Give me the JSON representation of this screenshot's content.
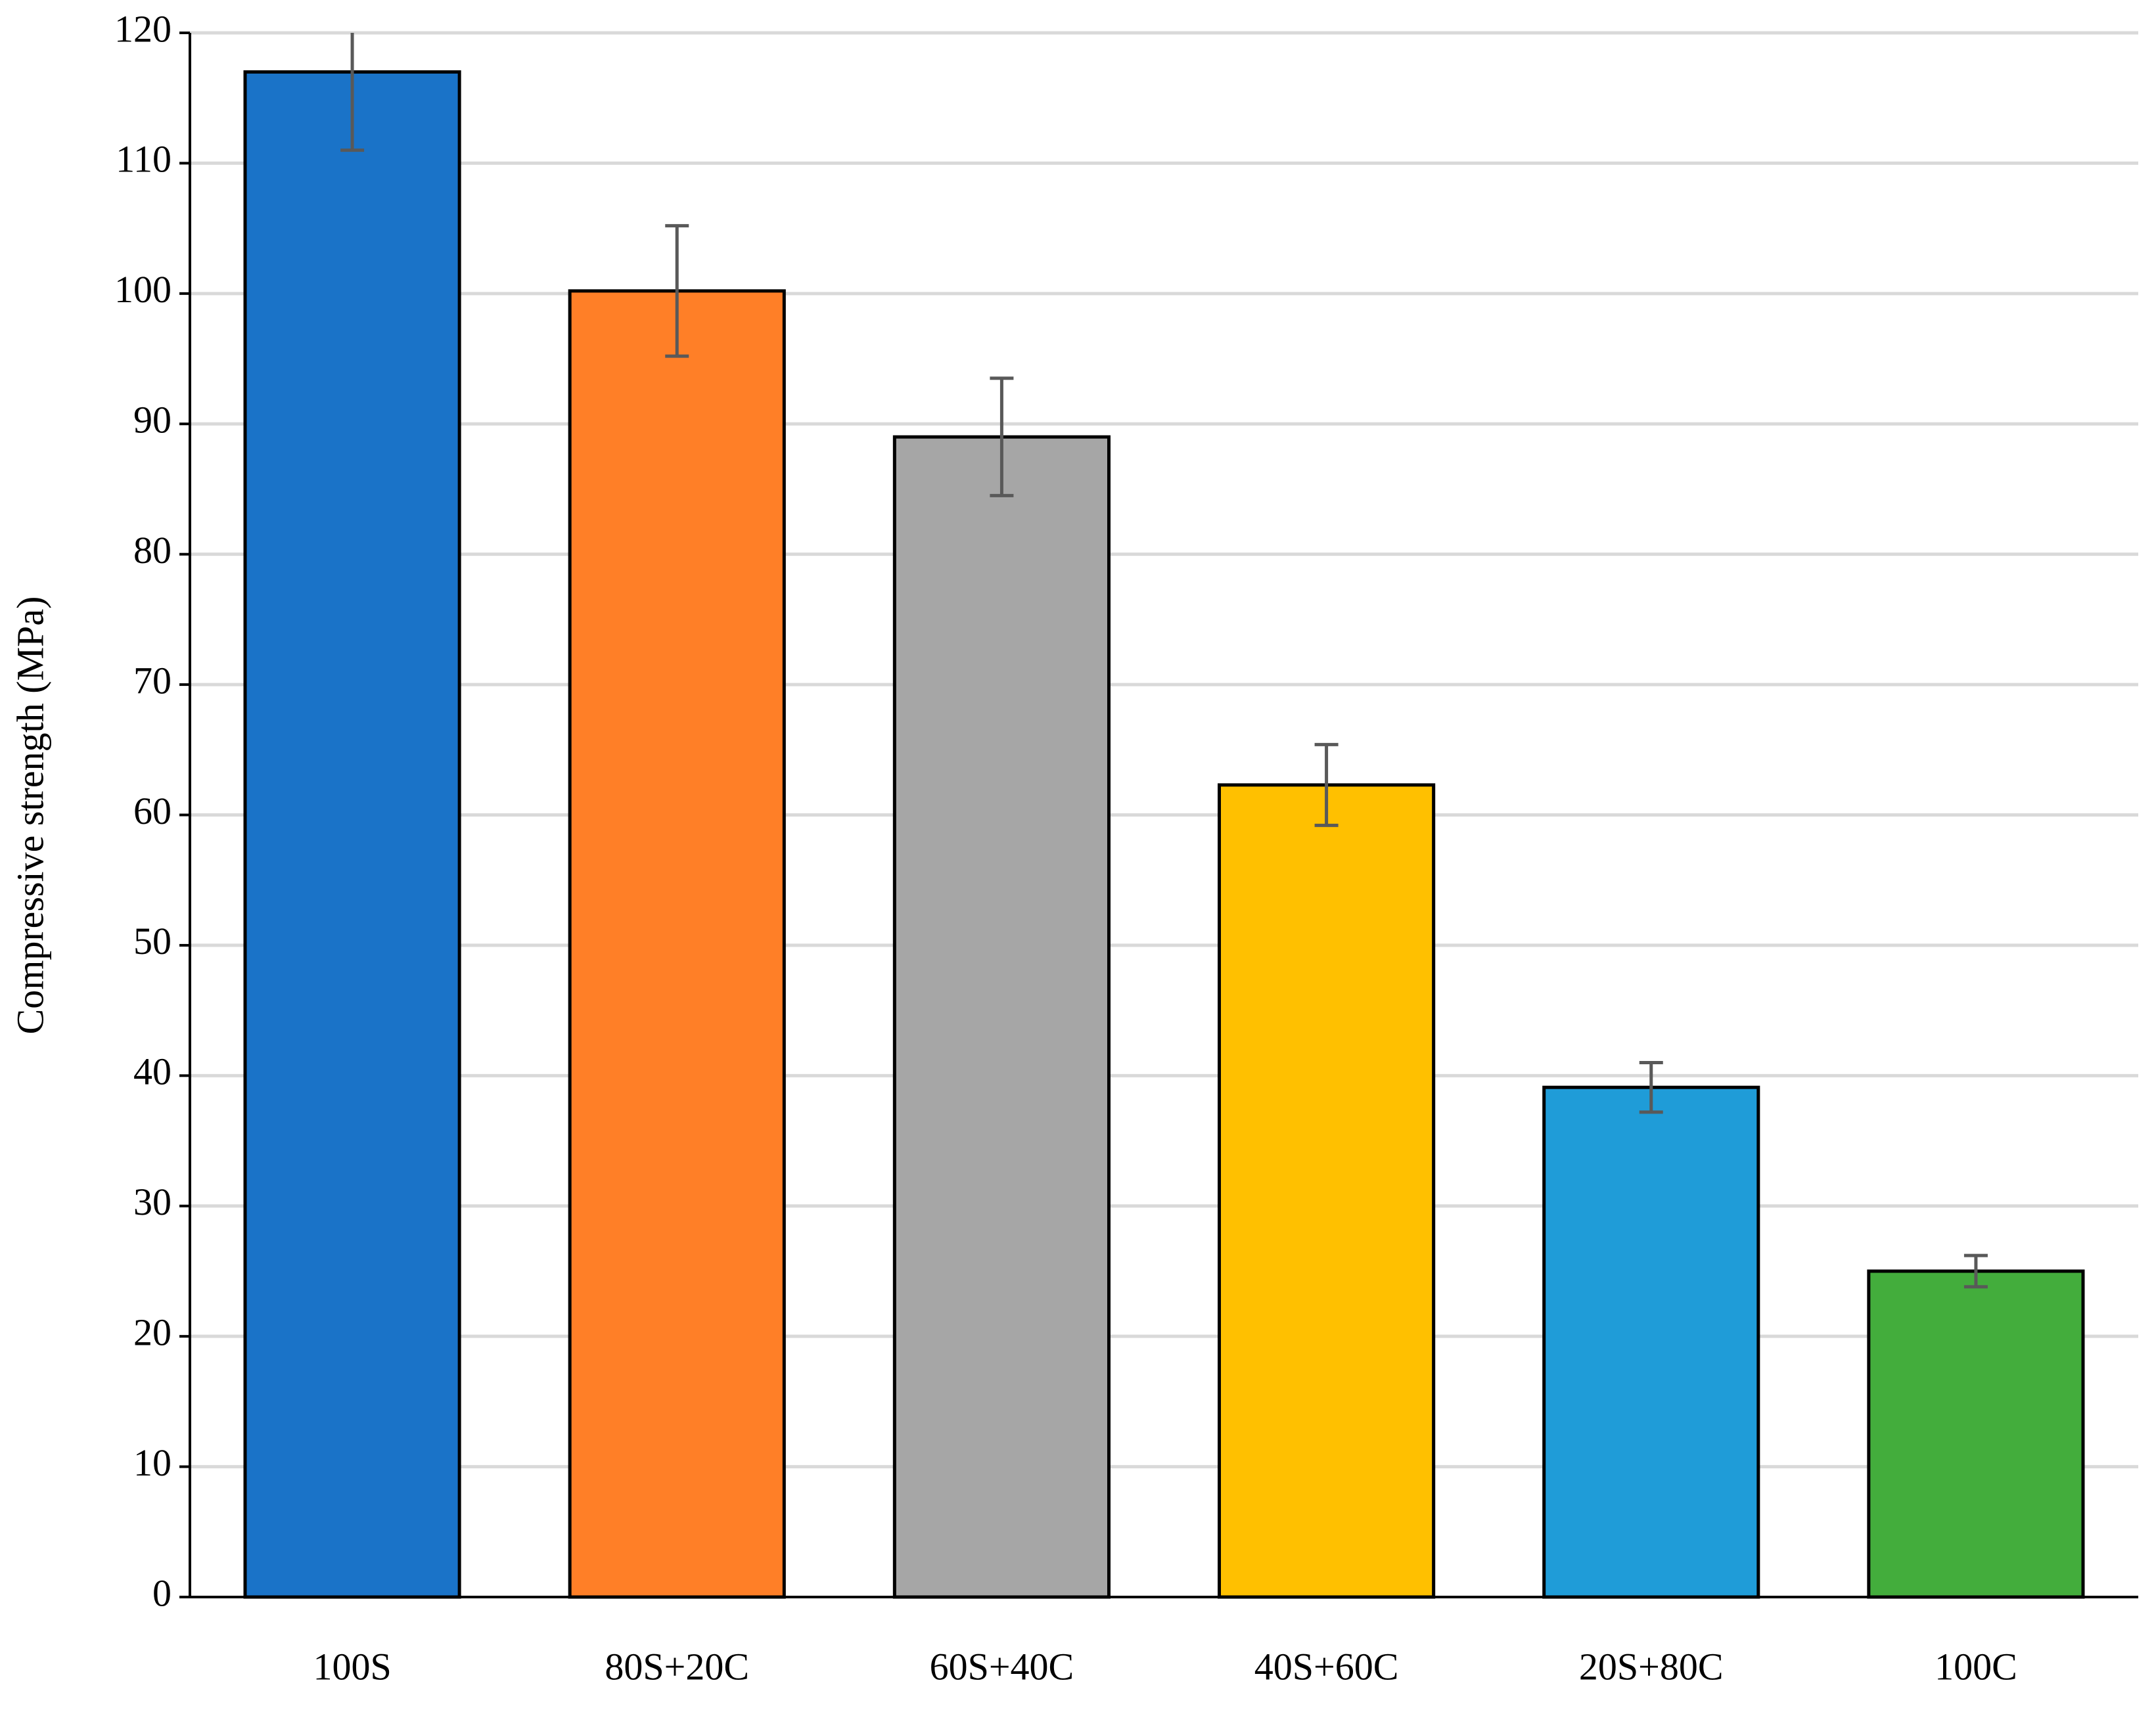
{
  "chart_data": {
    "type": "bar",
    "y_label": "Compressive strength (MPa)",
    "categories": [
      "100S",
      "80S+20C",
      "60S+40C",
      "40S+60C",
      "20S+80C",
      "100C"
    ],
    "values": [
      117,
      100.2,
      89,
      62.3,
      39.1,
      25
    ],
    "errors": [
      6,
      5,
      4.5,
      3.1,
      1.9,
      1.2
    ],
    "colors": [
      "#1a73c8",
      "#ff7f27",
      "#a6a6a6",
      "#ffc000",
      "#1f9cd8",
      "#43ad3c"
    ],
    "ylim": [
      0,
      120
    ],
    "yticks": [
      0,
      10,
      20,
      30,
      40,
      50,
      60,
      70,
      80,
      90,
      100,
      110,
      120
    ],
    "grid": true
  }
}
